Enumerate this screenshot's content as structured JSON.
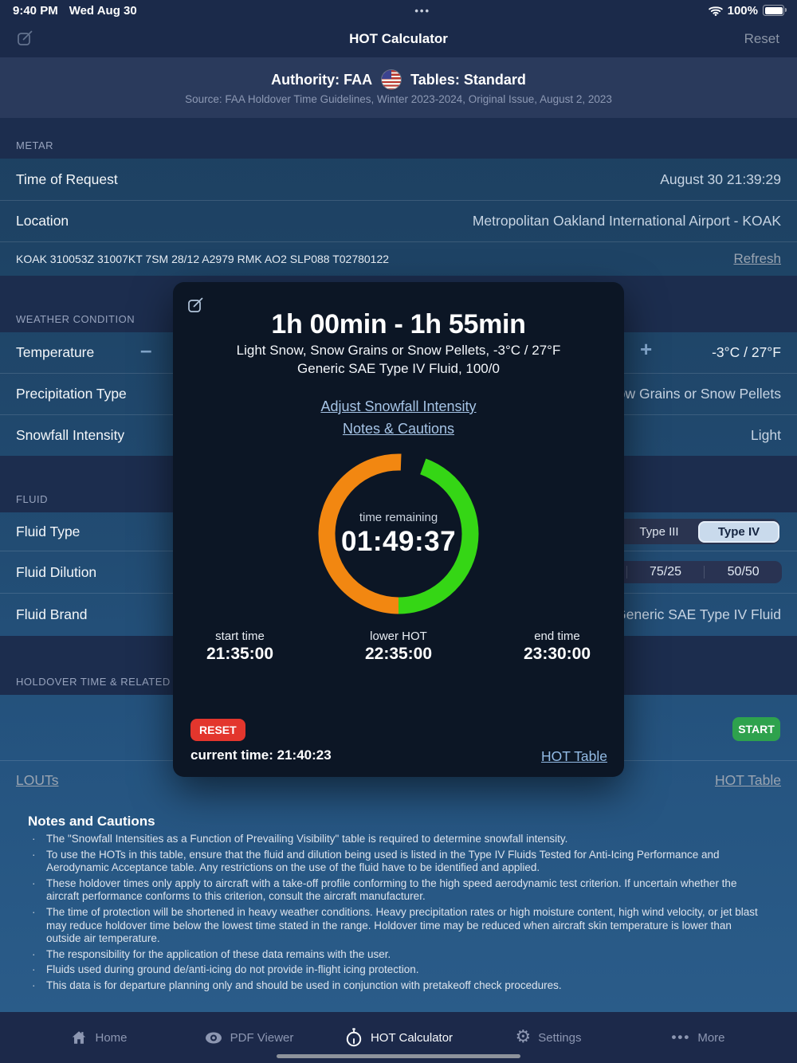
{
  "status_bar": {
    "time": "9:40 PM",
    "date": "Wed Aug 30",
    "ellipsis": "•••",
    "battery_percent": "100%"
  },
  "navbar": {
    "title": "HOT Calculator",
    "reset_label": "Reset"
  },
  "authority_bar": {
    "authority": "Authority: FAA",
    "tables": "Tables: Standard",
    "source": "Source: FAA Holdover Time Guidelines, Winter 2023-2024, Original Issue, August 2, 2023"
  },
  "metar": {
    "section_label": "METAR",
    "time_of_request_label": "Time of Request",
    "time_of_request_value": "August 30 21:39:29",
    "location_label": "Location",
    "location_value": "Metropolitan Oakland International Airport - KOAK",
    "metar_string": "KOAK 310053Z 31007KT 7SM 28/12 A2979 RMK AO2 SLP088 T02780122",
    "refresh_label": "Refresh"
  },
  "weather": {
    "section_label": "WEATHER CONDITION",
    "temperature_label": "Temperature",
    "temperature_value": "-3°C / 27°F",
    "minus": "–",
    "plus": "+",
    "precipitation_label": "Precipitation Type",
    "precipitation_value": "Light Snow, Snow Grains or Snow Pellets",
    "intensity_label": "Snowfall Intensity",
    "intensity_value": "Light"
  },
  "fluid": {
    "section_label": "FLUID",
    "type_label": "Fluid Type",
    "type_options": [
      "Type III",
      "Type IV"
    ],
    "type_selected": "Type IV",
    "dilution_label": "Fluid Dilution",
    "dilution_options": [
      "75/25",
      "50/50"
    ],
    "brand_label": "Fluid Brand",
    "brand_value": "Generic SAE Type IV Fluid"
  },
  "holdover": {
    "section_label": "HOLDOVER TIME & RELATED MAT",
    "start_label": "START",
    "louts_label": "LOUTs",
    "hot_table_label": "HOT Table"
  },
  "modal": {
    "title": "1h 00min - 1h 55min",
    "condition_line": "Light Snow, Snow Grains or Snow Pellets, -3°C / 27°F",
    "fluid_line": "Generic SAE Type IV Fluid, 100/0",
    "adjust_link": "Adjust Snowfall Intensity",
    "notes_link": "Notes & Cautions",
    "timer_label": "time remaining",
    "timer_value": "01:49:37",
    "times": [
      {
        "label": "start time",
        "value": "21:35:00"
      },
      {
        "label": "lower HOT",
        "value": "22:35:00"
      },
      {
        "label": "end time",
        "value": "23:30:00"
      }
    ],
    "reset_label": "RESET",
    "current_time": "current time: 21:40:23",
    "hot_table_label": "HOT Table",
    "ring": {
      "segments": [
        {
          "from": 20,
          "to": 180,
          "color": "#35d615"
        },
        {
          "from": 180,
          "to": 362,
          "color": "#f28711"
        }
      ],
      "radius": 90,
      "stroke": 21
    }
  },
  "notes": {
    "heading": "Notes and Cautions",
    "bullets": [
      "The \"Snowfall Intensities as a Function of Prevailing Visibility\" table is required to determine snowfall intensity.",
      "To use the HOTs in this table, ensure that the fluid and dilution being used is listed in the Type IV Fluids Tested for Anti-Icing Performance and Aerodynamic Acceptance table. Any restrictions on the use of the fluid have to be identified and applied.",
      "These holdover times only apply to aircraft with a take-off profile conforming to the high speed aerodynamic test criterion. If uncertain whether the aircraft performance conforms to this criterion, consult the aircraft manufacturer.",
      "The time of protection will be shortened in heavy weather conditions. Heavy precipitation rates or high moisture content, high wind velocity, or jet blast may reduce holdover time below the lowest time stated in the range. Holdover time may be reduced when aircraft skin temperature is lower than outside air temperature.",
      "The responsibility for the application of these data remains with the user.",
      "Fluids used during ground de/anti-icing do not provide in-flight icing protection.",
      "This data is for departure planning only and should be used in conjunction with pretakeoff check procedures."
    ]
  },
  "tabbar": {
    "items": [
      {
        "label": "Home",
        "active": false
      },
      {
        "label": "PDF Viewer",
        "active": false
      },
      {
        "label": "HOT Calculator",
        "active": true
      },
      {
        "label": "Settings",
        "active": false
      },
      {
        "label": "More",
        "active": false
      }
    ]
  },
  "colors": {
    "ring_green": "#35d615",
    "ring_orange": "#f28711",
    "start_green": "#2ea24d",
    "reset_red": "#e3362d",
    "segment_selected": "#c9daec",
    "link_blue": "#94bce6"
  }
}
